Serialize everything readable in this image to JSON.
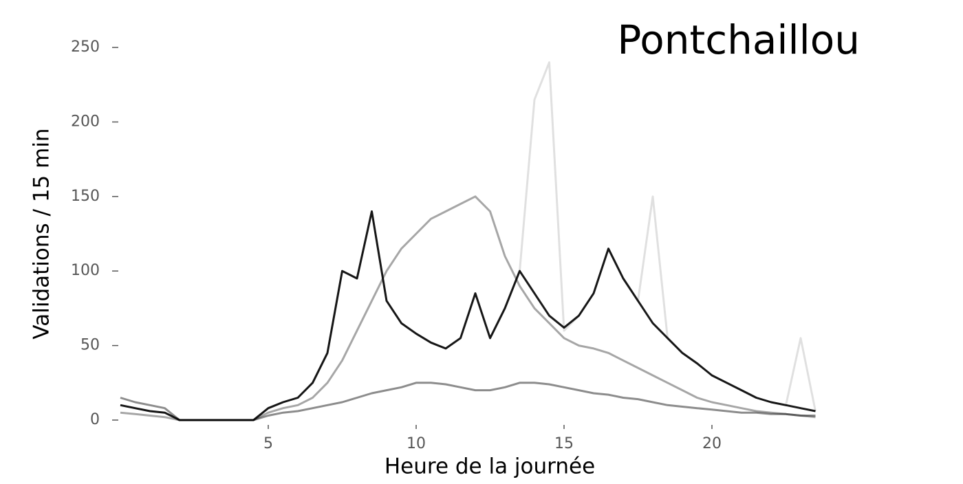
{
  "chart_data": {
    "type": "line",
    "title": "Pontchaillou",
    "xlabel": "Heure de la journée",
    "ylabel": "Validations / 15 min",
    "x": [
      0,
      0.5,
      1,
      1.5,
      2,
      2.5,
      3,
      3.5,
      4,
      4.5,
      5,
      5.5,
      6,
      6.5,
      7,
      7.5,
      8,
      8.5,
      9,
      9.5,
      10,
      10.5,
      11,
      11.5,
      12,
      12.5,
      13,
      13.5,
      14,
      14.5,
      15,
      15.5,
      16,
      16.5,
      17,
      17.5,
      18,
      18.5,
      19,
      19.5,
      20,
      20.5,
      21,
      21.5,
      22,
      22.5,
      23,
      23.5
    ],
    "series": [
      {
        "color": "rgba(0,0,0,0.35)",
        "values": [
          5,
          4,
          3,
          2,
          0,
          0,
          0,
          0,
          0,
          0,
          5,
          8,
          10,
          15,
          25,
          40,
          60,
          80,
          100,
          115,
          125,
          135,
          140,
          145,
          150,
          140,
          110,
          90,
          75,
          65,
          55,
          50,
          48,
          45,
          40,
          35,
          30,
          25,
          20,
          15,
          12,
          10,
          8,
          6,
          5,
          4,
          3,
          2
        ]
      },
      {
        "color": "rgba(0,0,0,0.45)",
        "values": [
          15,
          12,
          10,
          8,
          0,
          0,
          0,
          0,
          0,
          0,
          3,
          5,
          6,
          8,
          10,
          12,
          15,
          18,
          20,
          22,
          25,
          25,
          24,
          22,
          20,
          20,
          22,
          25,
          25,
          24,
          22,
          20,
          18,
          17,
          15,
          14,
          12,
          10,
          9,
          8,
          7,
          6,
          5,
          5,
          4,
          4,
          3,
          3
        ]
      },
      {
        "color": "rgba(0,0,0,0.12)",
        "values": [
          10,
          8,
          6,
          5,
          0,
          0,
          0,
          0,
          0,
          0,
          8,
          12,
          15,
          25,
          45,
          100,
          95,
          140,
          80,
          65,
          58,
          52,
          48,
          55,
          85,
          55,
          75,
          100,
          215,
          240,
          60,
          70,
          85,
          115,
          95,
          80,
          150,
          55,
          45,
          38,
          30,
          25,
          20,
          15,
          12,
          10,
          55,
          6
        ]
      },
      {
        "color": "rgba(0,0,0,0.9)",
        "values": [
          10,
          8,
          6,
          5,
          0,
          0,
          0,
          0,
          0,
          0,
          8,
          12,
          15,
          25,
          45,
          100,
          95,
          140,
          80,
          65,
          58,
          52,
          48,
          55,
          85,
          55,
          75,
          100,
          85,
          70,
          62,
          70,
          85,
          115,
          95,
          80,
          65,
          55,
          45,
          38,
          30,
          25,
          20,
          15,
          12,
          10,
          8,
          6
        ]
      }
    ],
    "xlim": [
      0,
      24
    ],
    "ylim": [
      0,
      250
    ],
    "xticks": [
      5,
      10,
      15,
      20
    ],
    "yticks": [
      0,
      50,
      100,
      150,
      200,
      250
    ]
  }
}
